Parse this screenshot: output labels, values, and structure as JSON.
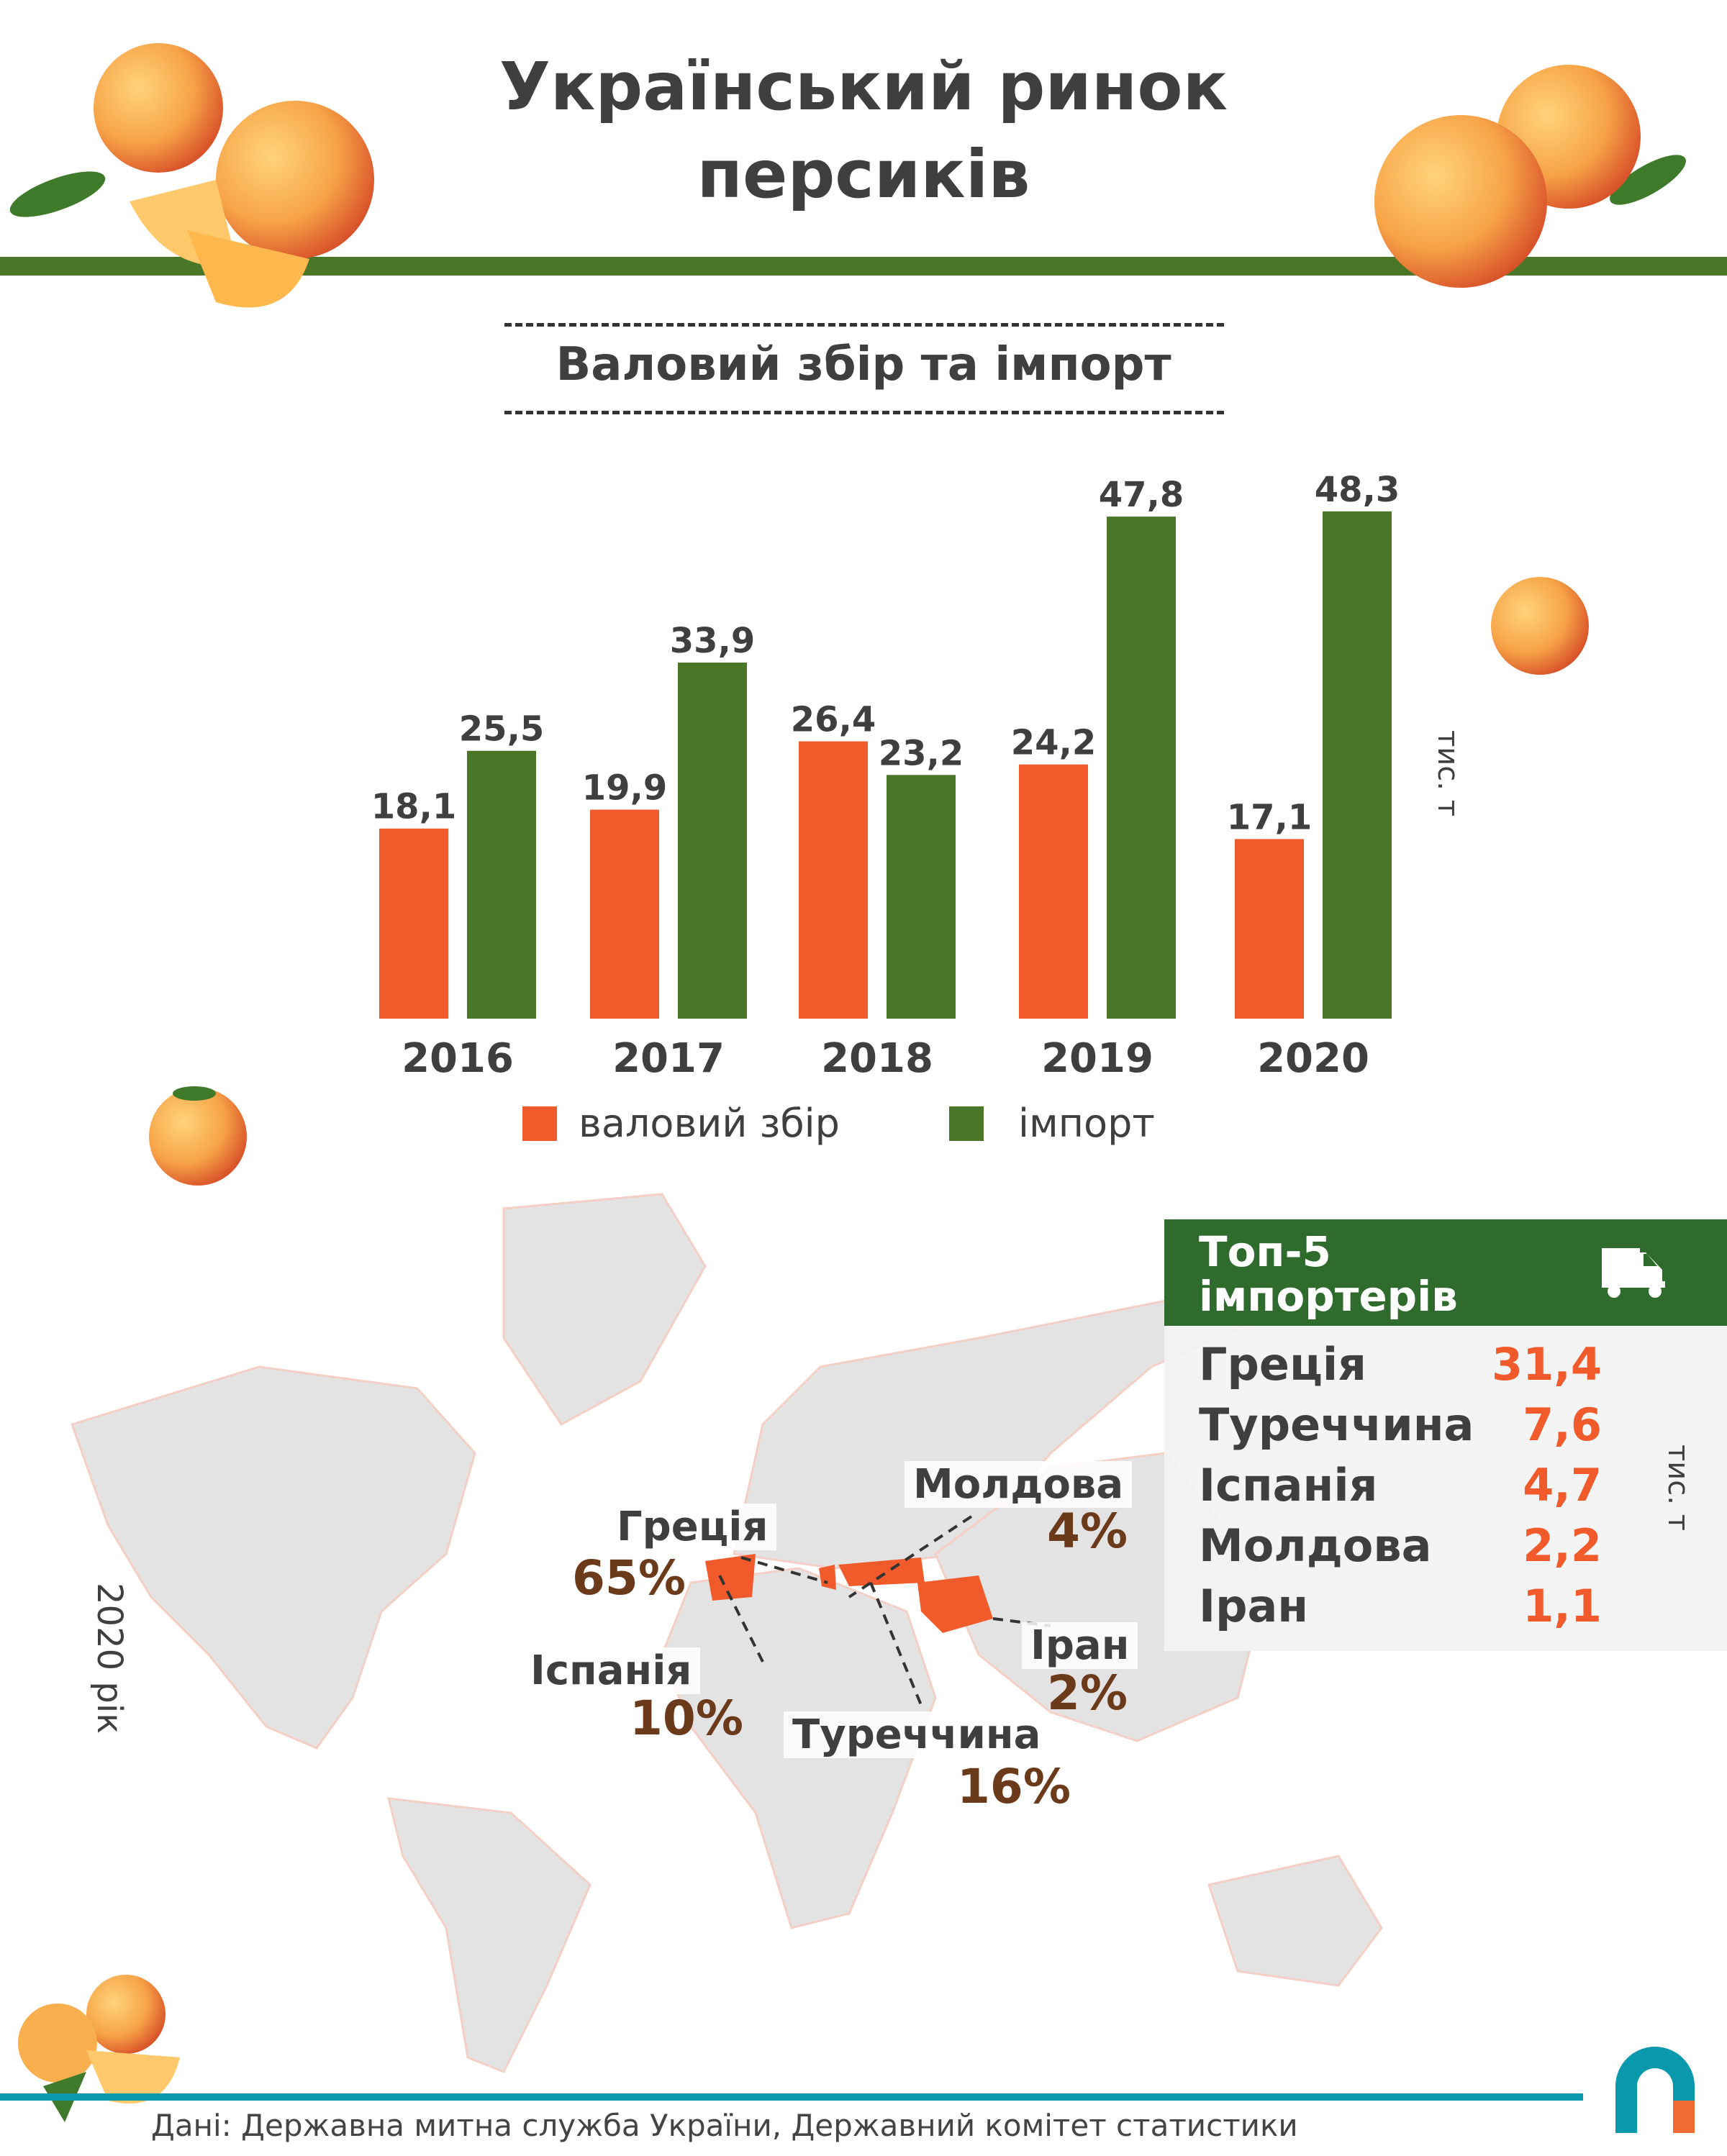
{
  "title": [
    "Український ринок",
    "персиків"
  ],
  "subtitle": "Валовий збір та імпорт",
  "colors": {
    "harvest": "#f15a2b",
    "import": "#4a7627",
    "header": "#2e6b2c",
    "accent": "#0a98ac"
  },
  "chart_data": {
    "type": "bar",
    "categories": [
      "2016",
      "2017",
      "2018",
      "2019",
      "2020"
    ],
    "series": [
      {
        "name": "валовий збір",
        "values": [
          18.1,
          19.9,
          26.4,
          24.2,
          17.1
        ],
        "labels": [
          "18,1",
          "19,9",
          "26,4",
          "24,2",
          "17,1"
        ]
      },
      {
        "name": "імпорт",
        "values": [
          25.5,
          33.9,
          23.2,
          47.8,
          48.3
        ],
        "labels": [
          "25,5",
          "33,9",
          "23,2",
          "47,8",
          "48,3"
        ]
      }
    ],
    "ylabel": "тис. т",
    "legend": "bottom",
    "grid": false
  },
  "map": {
    "year_label": "2020 рік",
    "labels": [
      {
        "country": "Греція",
        "share": "65%"
      },
      {
        "country": "Молдова",
        "share": "4%"
      },
      {
        "country": "Іспанія",
        "share": "10%"
      },
      {
        "country": "Туреччина",
        "share": "16%"
      },
      {
        "country": "Іран",
        "share": "2%"
      }
    ]
  },
  "top5": {
    "title": [
      "Топ-5",
      "імпортерів"
    ],
    "icon": "truck-icon",
    "unit": "тис. т",
    "rows": [
      {
        "country": "Греція",
        "value": "31,4"
      },
      {
        "country": "Туреччина",
        "value": "7,6"
      },
      {
        "country": "Іспанія",
        "value": "4,7"
      },
      {
        "country": "Молдова",
        "value": "2,2"
      },
      {
        "country": "Іран",
        "value": "1,1"
      }
    ]
  },
  "source": "Дані: Державна митна служба України, Державний комітет статистики"
}
